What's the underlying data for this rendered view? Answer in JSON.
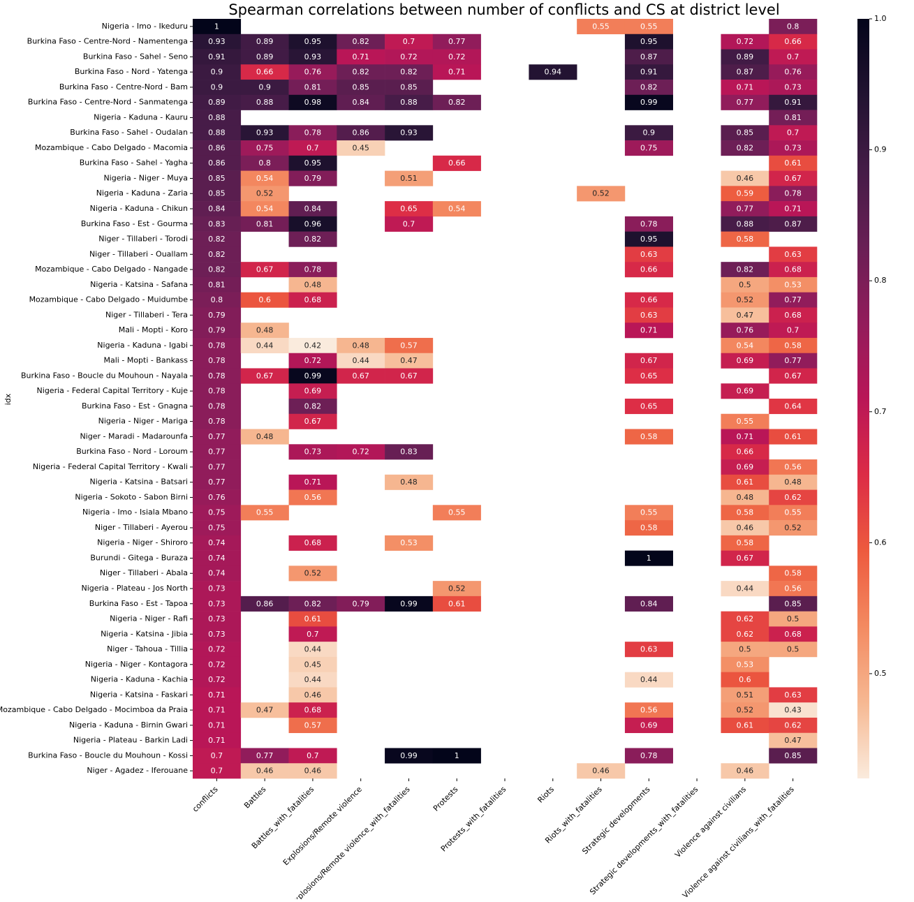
{
  "chart_data": {
    "type": "heatmap",
    "title": "Spearman correlations between number of conflicts and CS at district level",
    "ylabel": "idx",
    "x": [
      "conflicts",
      "Battles",
      "Battles_with_fatalities",
      "Explosions/Remote violence",
      "Explosions/Remote violence_with_fatalities",
      "Protests",
      "Protests_with_fatalities",
      "Riots",
      "Riots_with_fatalities",
      "Strategic developments",
      "Strategic developments_with_fatalities",
      "Violence against civilians",
      "Violence against civilians_with_fatalities"
    ],
    "y": [
      "Nigeria - Imo - Ikeduru",
      "Burkina Faso - Centre-Nord - Namentenga",
      "Burkina Faso - Sahel - Seno",
      "Burkina Faso - Nord - Yatenga",
      "Burkina Faso - Centre-Nord - Bam",
      "Burkina Faso - Centre-Nord - Sanmatenga",
      "Nigeria - Kaduna - Kauru",
      "Burkina Faso - Sahel - Oudalan",
      "Mozambique - Cabo Delgado - Macomia",
      "Burkina Faso - Sahel - Yagha",
      "Nigeria - Niger - Muya",
      "Nigeria - Kaduna - Zaria",
      "Nigeria - Kaduna - Chikun",
      "Burkina Faso - Est - Gourma",
      "Niger - Tillaberi - Torodi",
      "Niger - Tillaberi - Ouallam",
      "Mozambique - Cabo Delgado - Nangade",
      "Nigeria - Katsina - Safana",
      "Mozambique - Cabo Delgado - Muidumbe",
      "Niger - Tillaberi - Tera",
      "Mali - Mopti - Koro",
      "Nigeria - Kaduna - Igabi",
      "Mali - Mopti - Bankass",
      "Burkina Faso - Boucle du Mouhoun - Nayala",
      "Nigeria - Federal Capital Territory - Kuje",
      "Burkina Faso - Est - Gnagna",
      "Nigeria - Niger - Mariga",
      "Niger - Maradi - Madarounfa",
      "Burkina Faso - Nord - Loroum",
      "Nigeria - Federal Capital Territory - Kwali",
      "Nigeria - Katsina - Batsari",
      "Nigeria - Sokoto - Sabon Birni",
      "Nigeria - Imo - Isiala Mbano",
      "Niger - Tillaberi - Ayerou",
      "Nigeria - Niger - Shiroro",
      "Burundi - Gitega - Buraza",
      "Niger - Tillaberi - Abala",
      "Nigeria - Plateau - Jos North",
      "Burkina Faso - Est - Tapoa",
      "Nigeria - Niger - Rafi",
      "Nigeria - Katsina - Jibia",
      "Niger - Tahoua - Tillia",
      "Nigeria - Niger - Kontagora",
      "Nigeria - Kaduna - Kachia",
      "Nigeria - Katsina - Faskari",
      "Mozambique - Cabo Delgado - Mocimboa da Praia",
      "Nigeria - Kaduna - Birnin Gwari",
      "Nigeria - Plateau - Barkin Ladi",
      "Burkina Faso - Boucle du Mouhoun - Kossi",
      "Niger - Agadez - Iferouane"
    ],
    "values": [
      [
        1,
        null,
        null,
        null,
        null,
        null,
        null,
        null,
        0.55,
        0.55,
        null,
        null,
        0.8
      ],
      [
        0.93,
        0.89,
        0.95,
        0.82,
        0.7,
        0.77,
        null,
        null,
        null,
        0.95,
        null,
        0.72,
        0.66
      ],
      [
        0.91,
        0.89,
        0.93,
        0.71,
        0.72,
        0.72,
        null,
        null,
        null,
        0.87,
        null,
        0.89,
        0.7
      ],
      [
        0.9,
        0.66,
        0.76,
        0.82,
        0.82,
        0.71,
        null,
        0.94,
        null,
        0.91,
        null,
        0.87,
        0.76
      ],
      [
        0.9,
        0.9,
        0.81,
        0.85,
        0.85,
        null,
        null,
        null,
        null,
        0.82,
        null,
        0.71,
        0.73
      ],
      [
        0.89,
        0.88,
        0.98,
        0.84,
        0.88,
        0.82,
        null,
        null,
        null,
        0.99,
        null,
        0.77,
        0.91
      ],
      [
        0.88,
        null,
        null,
        null,
        null,
        null,
        null,
        null,
        null,
        null,
        null,
        null,
        0.81
      ],
      [
        0.88,
        0.93,
        0.78,
        0.86,
        0.93,
        null,
        null,
        null,
        null,
        0.9,
        null,
        0.85,
        0.7
      ],
      [
        0.86,
        0.75,
        0.7,
        0.45,
        null,
        null,
        null,
        null,
        null,
        0.75,
        null,
        0.82,
        0.73
      ],
      [
        0.86,
        0.8,
        0.95,
        null,
        null,
        0.66,
        null,
        null,
        null,
        null,
        null,
        null,
        0.61
      ],
      [
        0.85,
        0.54,
        0.79,
        null,
        0.51,
        null,
        null,
        null,
        null,
        null,
        null,
        0.46,
        0.67
      ],
      [
        0.85,
        0.52,
        null,
        null,
        null,
        null,
        null,
        null,
        0.52,
        null,
        null,
        0.59,
        0.78
      ],
      [
        0.84,
        0.54,
        0.84,
        null,
        0.65,
        0.54,
        null,
        null,
        null,
        null,
        null,
        0.77,
        0.71
      ],
      [
        0.83,
        0.81,
        0.96,
        null,
        0.7,
        null,
        null,
        null,
        null,
        0.78,
        null,
        0.88,
        0.87
      ],
      [
        0.82,
        null,
        0.82,
        null,
        null,
        null,
        null,
        null,
        null,
        0.95,
        null,
        0.58,
        null
      ],
      [
        0.82,
        null,
        null,
        null,
        null,
        null,
        null,
        null,
        null,
        0.63,
        null,
        null,
        0.63
      ],
      [
        0.82,
        0.67,
        0.78,
        null,
        null,
        null,
        null,
        null,
        null,
        0.66,
        null,
        0.82,
        0.68
      ],
      [
        0.81,
        null,
        0.48,
        null,
        null,
        null,
        null,
        null,
        null,
        null,
        null,
        0.5,
        0.53
      ],
      [
        0.8,
        0.6,
        0.68,
        null,
        null,
        null,
        null,
        null,
        null,
        0.66,
        null,
        0.52,
        0.77
      ],
      [
        0.79,
        null,
        null,
        null,
        null,
        null,
        null,
        null,
        null,
        0.63,
        null,
        0.47,
        0.68
      ],
      [
        0.79,
        0.48,
        null,
        null,
        null,
        null,
        null,
        null,
        null,
        0.71,
        null,
        0.76,
        0.7
      ],
      [
        0.78,
        0.44,
        0.42,
        0.48,
        0.57,
        null,
        null,
        null,
        null,
        null,
        null,
        0.54,
        0.58
      ],
      [
        0.78,
        null,
        0.72,
        0.44,
        0.47,
        null,
        null,
        null,
        null,
        0.67,
        null,
        0.69,
        0.77
      ],
      [
        0.78,
        0.67,
        0.99,
        0.67,
        0.67,
        null,
        null,
        null,
        null,
        0.65,
        null,
        null,
        0.67
      ],
      [
        0.78,
        null,
        0.69,
        null,
        null,
        null,
        null,
        null,
        null,
        null,
        null,
        0.69,
        null
      ],
      [
        0.78,
        null,
        0.82,
        null,
        null,
        null,
        null,
        null,
        null,
        0.65,
        null,
        null,
        0.64
      ],
      [
        0.78,
        null,
        0.67,
        null,
        null,
        null,
        null,
        null,
        null,
        null,
        null,
        0.55,
        null
      ],
      [
        0.77,
        0.48,
        null,
        null,
        null,
        null,
        null,
        null,
        null,
        0.58,
        null,
        0.71,
        0.61
      ],
      [
        0.77,
        null,
        0.73,
        0.72,
        0.83,
        null,
        null,
        null,
        null,
        null,
        null,
        0.66,
        null
      ],
      [
        0.77,
        null,
        null,
        null,
        null,
        null,
        null,
        null,
        null,
        null,
        null,
        0.69,
        0.56
      ],
      [
        0.77,
        null,
        0.71,
        null,
        0.48,
        null,
        null,
        null,
        null,
        null,
        null,
        0.61,
        0.48
      ],
      [
        0.76,
        null,
        0.56,
        null,
        null,
        null,
        null,
        null,
        null,
        null,
        null,
        0.48,
        0.62
      ],
      [
        0.75,
        0.55,
        null,
        null,
        null,
        0.55,
        null,
        null,
        null,
        0.55,
        null,
        0.58,
        0.55
      ],
      [
        0.75,
        null,
        null,
        null,
        null,
        null,
        null,
        null,
        null,
        0.58,
        null,
        0.46,
        0.52
      ],
      [
        0.74,
        null,
        0.68,
        null,
        0.53,
        null,
        null,
        null,
        null,
        null,
        null,
        0.58,
        null
      ],
      [
        0.74,
        null,
        null,
        null,
        null,
        null,
        null,
        null,
        null,
        1,
        null,
        0.67,
        null
      ],
      [
        0.74,
        null,
        0.52,
        null,
        null,
        null,
        null,
        null,
        null,
        null,
        null,
        null,
        0.58
      ],
      [
        0.73,
        null,
        null,
        null,
        null,
        0.52,
        null,
        null,
        null,
        null,
        null,
        0.44,
        0.56
      ],
      [
        0.73,
        0.86,
        0.82,
        0.79,
        0.99,
        0.61,
        null,
        null,
        null,
        0.84,
        null,
        null,
        0.85
      ],
      [
        0.73,
        null,
        0.61,
        null,
        null,
        null,
        null,
        null,
        null,
        null,
        null,
        0.62,
        0.5
      ],
      [
        0.73,
        null,
        0.7,
        null,
        null,
        null,
        null,
        null,
        null,
        null,
        null,
        0.62,
        0.68
      ],
      [
        0.72,
        null,
        0.44,
        null,
        null,
        null,
        null,
        null,
        null,
        0.63,
        null,
        0.5,
        0.5
      ],
      [
        0.72,
        null,
        0.45,
        null,
        null,
        null,
        null,
        null,
        null,
        null,
        null,
        0.53,
        null
      ],
      [
        0.72,
        null,
        0.44,
        null,
        null,
        null,
        null,
        null,
        null,
        0.44,
        null,
        0.6,
        null
      ],
      [
        0.71,
        null,
        0.46,
        null,
        null,
        null,
        null,
        null,
        null,
        null,
        null,
        0.51,
        0.63
      ],
      [
        0.71,
        0.47,
        0.68,
        null,
        null,
        null,
        null,
        null,
        null,
        0.56,
        null,
        0.52,
        0.43
      ],
      [
        0.71,
        null,
        0.57,
        null,
        null,
        null,
        null,
        null,
        null,
        0.69,
        null,
        0.61,
        0.62
      ],
      [
        0.71,
        null,
        null,
        null,
        null,
        null,
        null,
        null,
        null,
        null,
        null,
        null,
        0.47
      ],
      [
        0.7,
        0.77,
        0.7,
        null,
        0.99,
        1,
        null,
        null,
        null,
        0.78,
        null,
        null,
        0.85
      ],
      [
        0.7,
        0.46,
        0.46,
        null,
        null,
        null,
        null,
        null,
        0.46,
        null,
        null,
        0.46,
        null
      ]
    ],
    "clim": [
      0.42,
      1.0
    ],
    "cticks": [
      0.5,
      0.6,
      0.7,
      0.8,
      0.9,
      {
        "value": 1,
        "label": "1.0"
      }
    ],
    "colormap": [
      "#faebdd",
      "#f6b892",
      "#f38a61",
      "#ed5a3e",
      "#dc2c46",
      "#b91657",
      "#921c5b",
      "#691f55",
      "#451c47",
      "#221331",
      "#03051a"
    ]
  }
}
